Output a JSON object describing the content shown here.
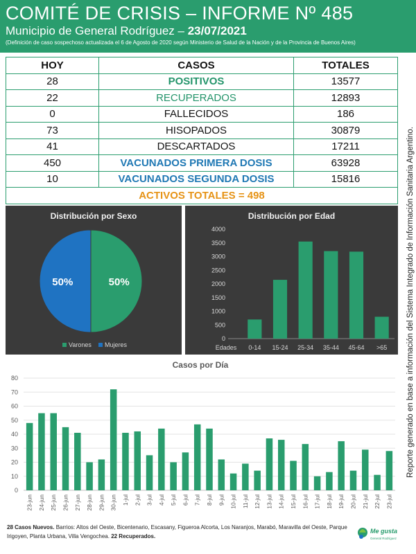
{
  "header": {
    "title": "COMITÉ DE CRISIS – INFORME Nº 485",
    "subtitle_prefix": "Municipio de General Rodríguez –",
    "date": "23/07/2021",
    "note": "(Definición de caso sospechoso actualizada el 6 de Agosto de 2020 según Ministerio de Salud de la Nación y de la Provincia de Buenos Aires)"
  },
  "table": {
    "headers": [
      "HOY",
      "CASOS",
      "TOTALES"
    ],
    "rows": [
      {
        "hoy": "28",
        "caso": "POSITIVOS",
        "total": "13577"
      },
      {
        "hoy": "22",
        "caso": "RECUPERADOS",
        "total": "12893"
      },
      {
        "hoy": "0",
        "caso": "FALLECIDOS",
        "total": "186"
      },
      {
        "hoy": "73",
        "caso": "HISOPADOS",
        "total": "30879"
      },
      {
        "hoy": "41",
        "caso": "DESCARTADOS",
        "total": "17211"
      },
      {
        "hoy": "450",
        "caso": "VACUNADOS PRIMERA DOSIS",
        "total": "63928"
      },
      {
        "hoy": "10",
        "caso": "VACUNADOS SEGUNDA DOSIS",
        "total": "15816"
      }
    ],
    "activos": "ACTIVOS TOTALES = 498"
  },
  "side_note": "Reporte generado en base a información del Sistema Integrado de Información Sanitaria Argentino.",
  "chart_data": [
    {
      "type": "pie",
      "title": "Distribución por Sexo",
      "labels": [
        "Varones",
        "Mujeres"
      ],
      "values": [
        50,
        50
      ],
      "value_labels": [
        "50%",
        "50%"
      ],
      "colors": [
        "#2a9d6e",
        "#1f73c2"
      ],
      "legend": "bottom"
    },
    {
      "type": "bar",
      "title": "Distribución por Edad",
      "axis_label": "Edades",
      "categories": [
        "0-14",
        "15-24",
        "25-34",
        "35-44",
        "45-64",
        ">65"
      ],
      "values": [
        700,
        2150,
        3550,
        3200,
        3180,
        800
      ],
      "ylim": [
        0,
        4000
      ],
      "yticks": [
        0,
        500,
        1000,
        1500,
        2000,
        2500,
        3000,
        3500,
        4000
      ],
      "color": "#2a9d6e",
      "grid": false
    },
    {
      "type": "bar",
      "title": "Casos por Día",
      "categories": [
        "23-jun",
        "24-jun",
        "25-jun",
        "26-jun",
        "27-jun",
        "28-jun",
        "29-jun",
        "30-jun",
        "1-jul",
        "2-jul",
        "3-jul",
        "4-jul",
        "5-jul",
        "6-jul",
        "7-jul",
        "8-jul",
        "9-jul",
        "10-jul",
        "11-jul",
        "12-jul",
        "13-jul",
        "14-jul",
        "15-jul",
        "16-jul",
        "17-jul",
        "18-jul",
        "19-jul",
        "20-jul",
        "21-jul",
        "22-jul",
        "23-jul"
      ],
      "values": [
        48,
        55,
        55,
        45,
        41,
        20,
        22,
        72,
        41,
        42,
        25,
        44,
        20,
        27,
        47,
        44,
        22,
        12,
        19,
        14,
        37,
        36,
        21,
        33,
        10,
        13,
        35,
        14,
        29,
        11,
        28
      ],
      "ylim": [
        0,
        80
      ],
      "yticks": [
        0,
        10,
        20,
        30,
        40,
        50,
        60,
        70,
        80
      ],
      "color": "#2a9d6e",
      "grid": true
    }
  ],
  "footer": {
    "bold1": "28 Casos Nuevos.",
    "text": " Barrios: Altos del Oeste, Bicentenario, Escasany, Figueroa Alcorta, Los Naranjos, Marabó, Maravilla del Oeste, Parque Irigoyen, Planta Urbana, Villa Vengochea.",
    "bold2": "22 Recuperados."
  },
  "logo": {
    "line1": "Me gusta",
    "line2": "General Rodríguez"
  }
}
